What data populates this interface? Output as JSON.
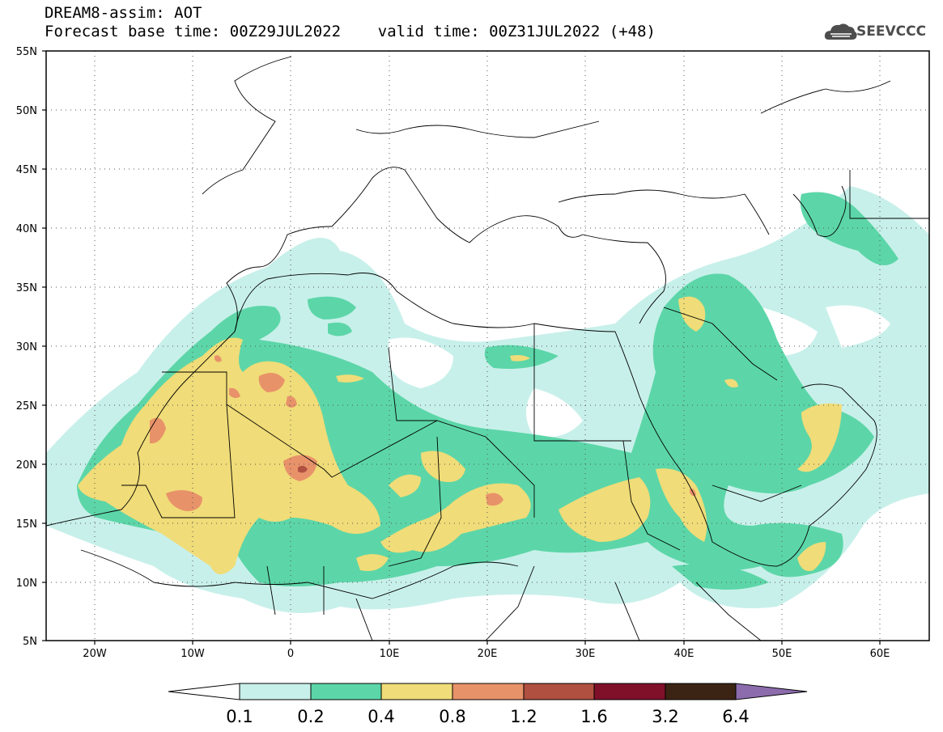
{
  "header": {
    "title_line1": "DREAM8-assim: AOT",
    "title_line2": "Forecast base time: 00Z29JUL2022    valid time: 00Z31JUL2022 (+48)"
  },
  "logo": {
    "text": "SEEVCCC",
    "icon": "cloud-icon",
    "color": "#4d4d4d"
  },
  "map": {
    "lat_labels": [
      "55N",
      "50N",
      "45N",
      "40N",
      "35N",
      "30N",
      "25N",
      "20N",
      "15N",
      "10N",
      "5N"
    ],
    "lon_labels": [
      "20W",
      "10W",
      "0",
      "10E",
      "20E",
      "30E",
      "40E",
      "50E",
      "60E"
    ],
    "lat_range": [
      5,
      55
    ],
    "lon_range": [
      -25,
      65
    ],
    "grid": "dotted"
  },
  "colorbar": {
    "labels": [
      "0.1",
      "0.2",
      "0.4",
      "0.8",
      "1.2",
      "1.6",
      "3.2",
      "6.4"
    ],
    "colors": [
      "#c8f0ea",
      "#5cd6a8",
      "#f0dc78",
      "#e8926a",
      "#b05040",
      "#80102a",
      "#3c2414",
      "#8c6cac"
    ],
    "under_color": "#ffffff"
  }
}
